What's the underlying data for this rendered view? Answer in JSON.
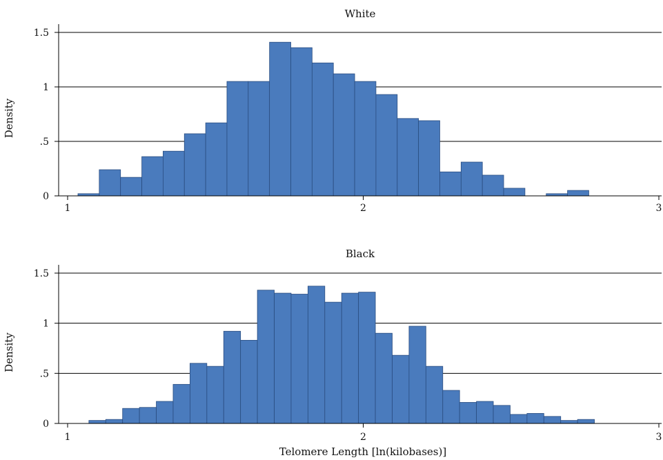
{
  "chart_data": [
    {
      "type": "bar",
      "title": "White",
      "xlabel": "",
      "ylabel": "Density",
      "xlim": [
        1,
        3
      ],
      "ylim": [
        0,
        1.5
      ],
      "x_ticks": [
        {
          "value": 1,
          "label": "1"
        },
        {
          "value": 2,
          "label": "2"
        },
        {
          "value": 3,
          "label": "3"
        }
      ],
      "y_ticks": [
        {
          "value": 0,
          "label": "0"
        },
        {
          "value": 0.5,
          "label": ".5"
        },
        {
          "value": 1,
          "label": "1"
        },
        {
          "value": 1.5,
          "label": "1.5"
        }
      ],
      "grid": true,
      "bin_edges": [
        1.035,
        1.107,
        1.179,
        1.251,
        1.323,
        1.395,
        1.467,
        1.539,
        1.611,
        1.683,
        1.755,
        1.827,
        1.899,
        1.971,
        2.043,
        2.115,
        2.187,
        2.259,
        2.331,
        2.403,
        2.475,
        2.547,
        2.619,
        2.691,
        2.763
      ],
      "values": [
        0.02,
        0.24,
        0.17,
        0.36,
        0.41,
        0.57,
        0.67,
        1.05,
        1.05,
        1.41,
        1.36,
        1.22,
        1.12,
        1.05,
        0.93,
        0.71,
        0.69,
        0.22,
        0.31,
        0.19,
        0.07,
        0.0,
        0.02,
        0.05
      ]
    },
    {
      "type": "bar",
      "title": "Black",
      "xlabel": "Telomere Length [ln(kilobases)]",
      "ylabel": "Density",
      "xlim": [
        1,
        3
      ],
      "ylim": [
        0,
        1.5
      ],
      "x_ticks": [
        {
          "value": 1,
          "label": "1"
        },
        {
          "value": 2,
          "label": "2"
        },
        {
          "value": 3,
          "label": "3"
        }
      ],
      "y_ticks": [
        {
          "value": 0,
          "label": "0"
        },
        {
          "value": 0.5,
          "label": ".5"
        },
        {
          "value": 1,
          "label": "1"
        },
        {
          "value": 1.5,
          "label": "1.5"
        }
      ],
      "grid": true,
      "bin_edges": [
        1.072,
        1.129,
        1.186,
        1.243,
        1.3,
        1.357,
        1.414,
        1.471,
        1.528,
        1.585,
        1.642,
        1.699,
        1.756,
        1.813,
        1.87,
        1.927,
        1.984,
        2.041,
        2.098,
        2.155,
        2.212,
        2.269,
        2.326,
        2.383,
        2.44,
        2.497,
        2.554,
        2.611,
        2.668,
        2.725,
        2.782
      ],
      "values": [
        0.03,
        0.04,
        0.15,
        0.16,
        0.22,
        0.39,
        0.6,
        0.57,
        0.92,
        0.83,
        1.33,
        1.3,
        1.29,
        1.37,
        1.21,
        1.3,
        1.31,
        0.9,
        0.68,
        0.97,
        0.57,
        0.33,
        0.21,
        0.22,
        0.18,
        0.09,
        0.1,
        0.07,
        0.03,
        0.04
      ]
    }
  ]
}
